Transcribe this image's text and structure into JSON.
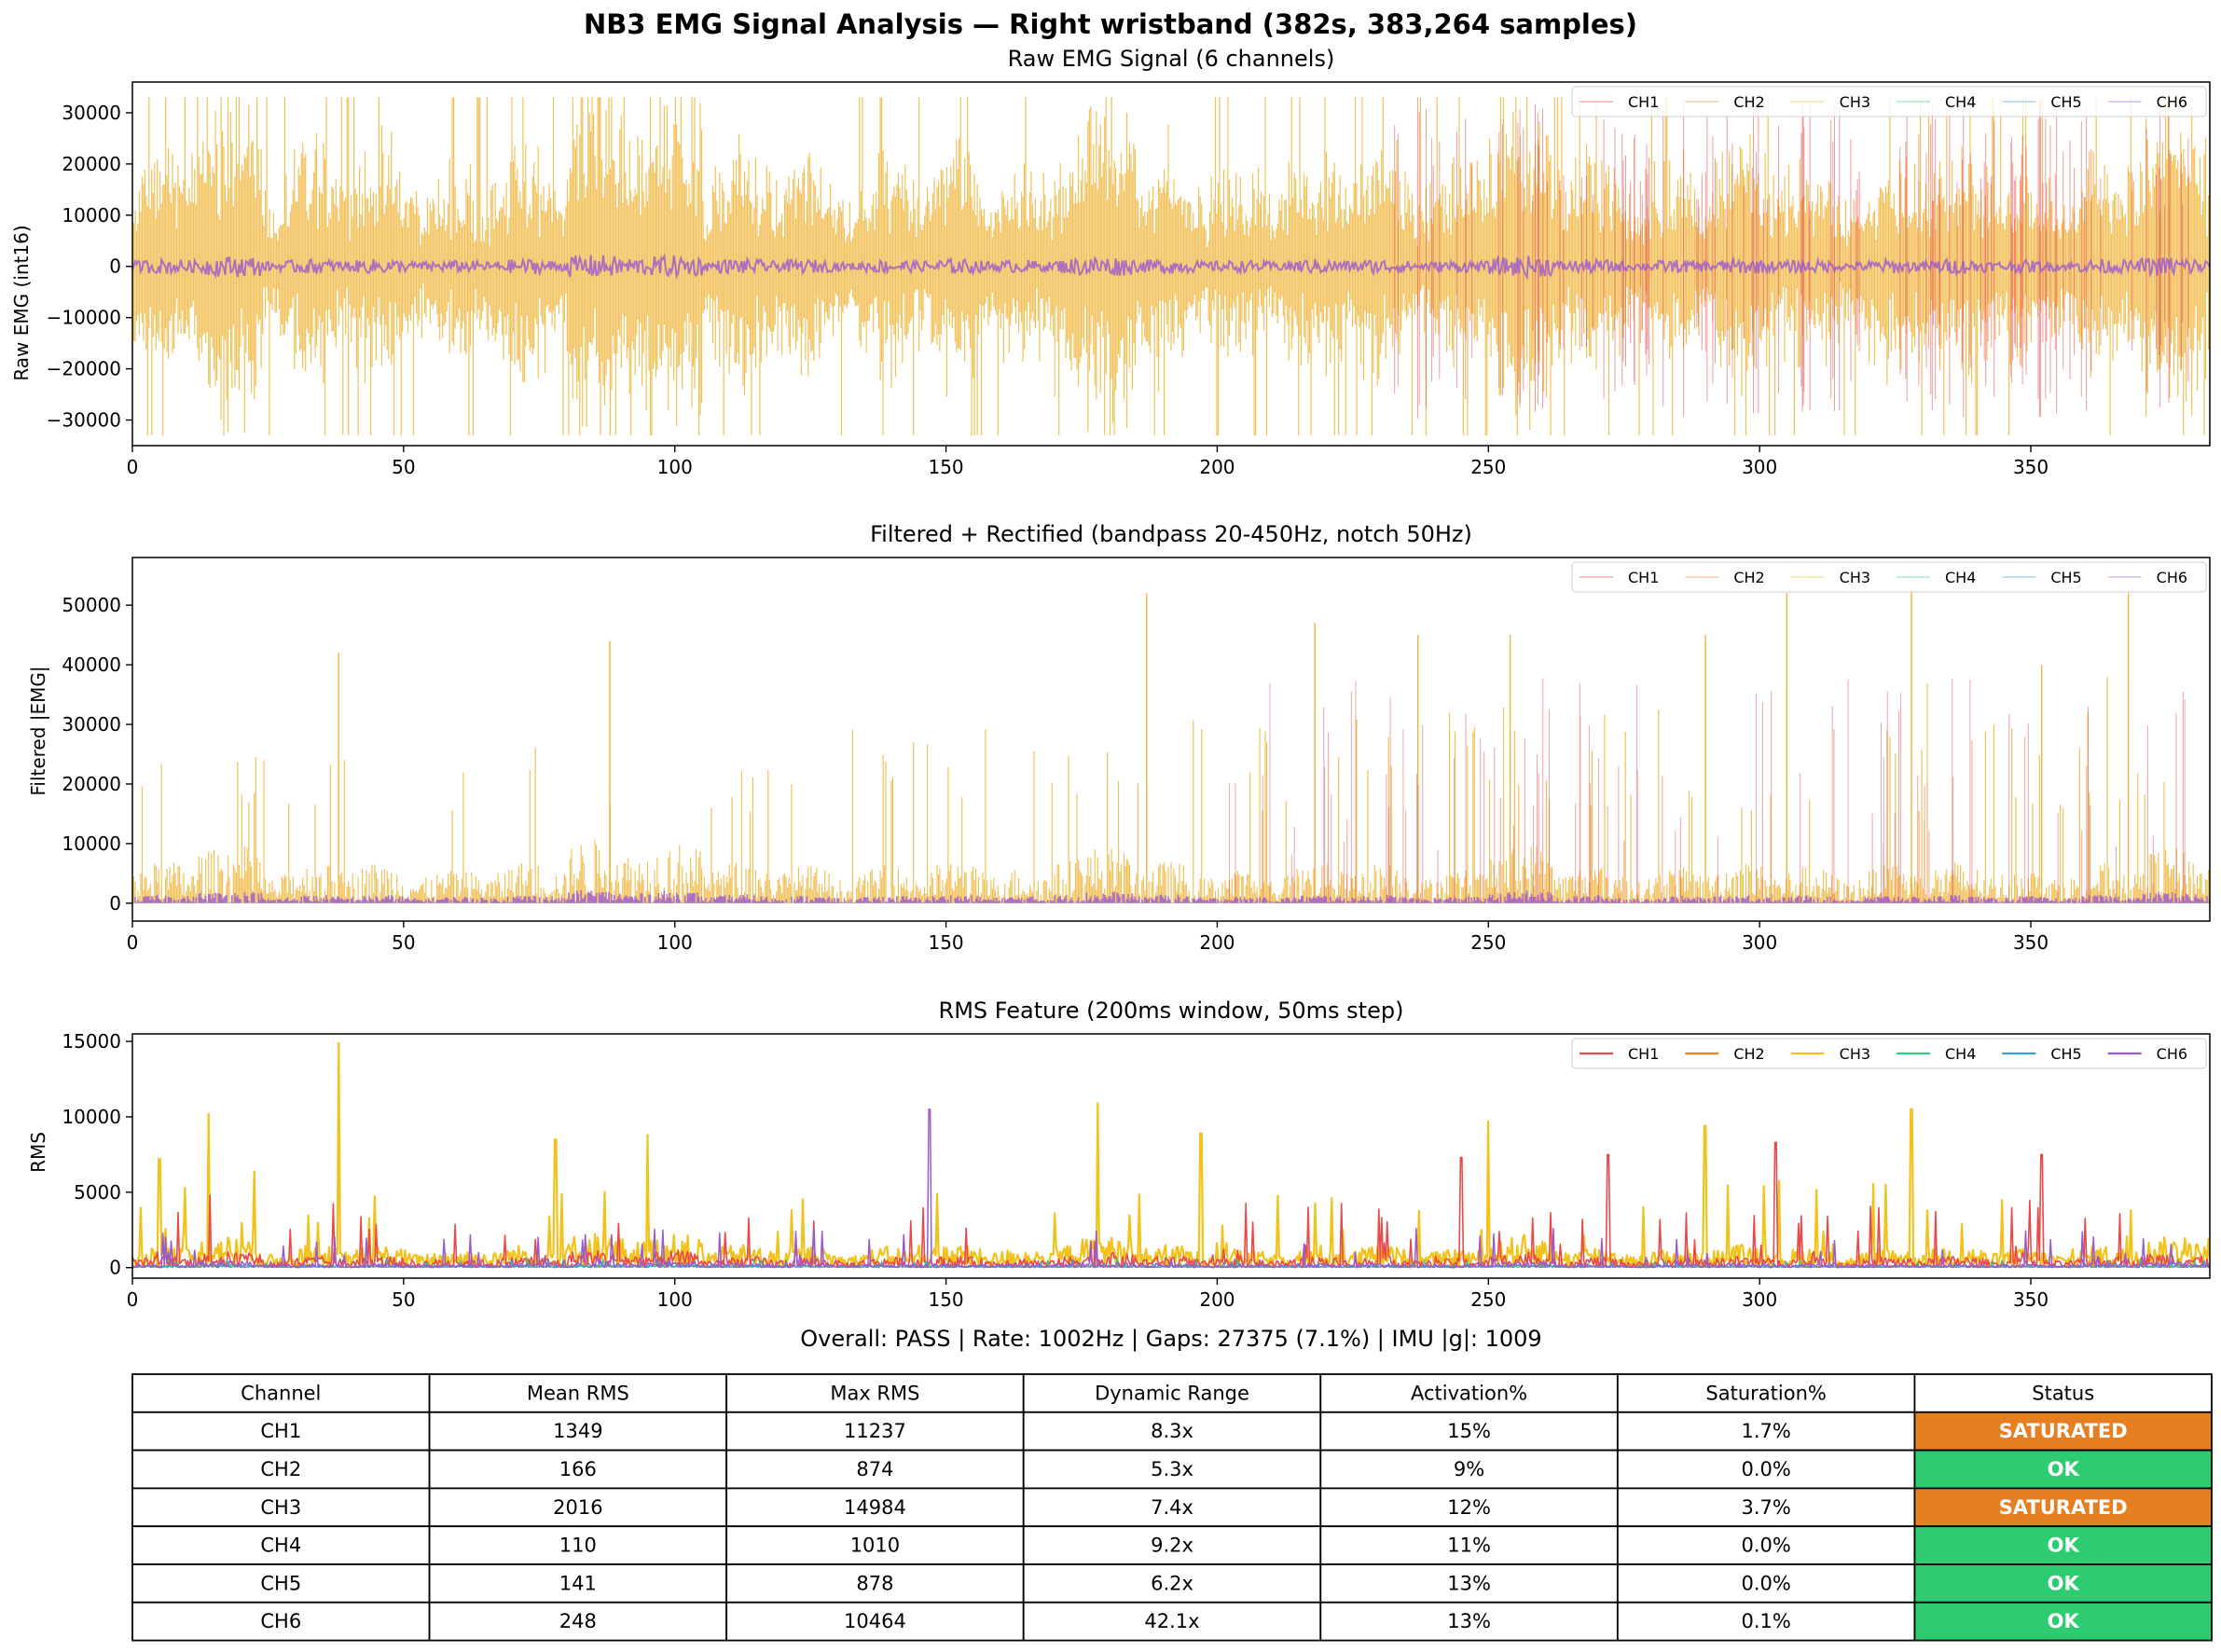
{
  "figure": {
    "title": "NB3 EMG Signal Analysis — Right wristband (382s, 383,264 samples)",
    "summary": "Overall: PASS | Rate: 1002Hz | Gaps: 27375 (7.1%) | IMU |g|: 1009"
  },
  "colors": {
    "CH1": "#e84a4a",
    "CH2": "#e8822a",
    "CH3": "#f2c21b",
    "CH4": "#2ecc87",
    "CH5": "#3a9fd8",
    "CH6": "#9b59d0",
    "raw_fill": "#f0b53c",
    "status_ok": "#2ecc71",
    "status_saturated": "#e67e22"
  },
  "chart_data": [
    {
      "type": "line",
      "title": "Raw EMG Signal (6 channels)",
      "xlabel": "",
      "ylabel": "Raw EMG (int16)",
      "xlim": [
        0,
        383
      ],
      "ylim": [
        -35000,
        36000
      ],
      "xticks": [
        0,
        50,
        100,
        150,
        200,
        250,
        300,
        350
      ],
      "yticks": [
        -30000,
        -20000,
        -10000,
        0,
        10000,
        20000,
        30000
      ],
      "legend": "top-right",
      "series": [
        {
          "name": "CH1"
        },
        {
          "name": "CH2"
        },
        {
          "name": "CH3"
        },
        {
          "name": "CH4"
        },
        {
          "name": "CH5"
        },
        {
          "name": "CH6"
        }
      ]
    },
    {
      "type": "line",
      "title": "Filtered + Rectified (bandpass 20-450Hz, notch 50Hz)",
      "xlabel": "",
      "ylabel": "Filtered |EMG|",
      "xlim": [
        0,
        383
      ],
      "ylim": [
        -3000,
        58000
      ],
      "xticks": [
        0,
        50,
        100,
        150,
        200,
        250,
        300,
        350
      ],
      "yticks": [
        0,
        10000,
        20000,
        30000,
        40000,
        50000
      ],
      "legend": "top-right",
      "series": [
        {
          "name": "CH1"
        },
        {
          "name": "CH2"
        },
        {
          "name": "CH3"
        },
        {
          "name": "CH4"
        },
        {
          "name": "CH5"
        },
        {
          "name": "CH6"
        }
      ]
    },
    {
      "type": "line",
      "title": "RMS Feature (200ms window, 50ms step)",
      "xlabel": "",
      "ylabel": "RMS",
      "xlim": [
        0,
        383
      ],
      "ylim": [
        -700,
        15500
      ],
      "xticks": [
        0,
        50,
        100,
        150,
        200,
        250,
        300,
        350
      ],
      "yticks": [
        0,
        5000,
        10000,
        15000
      ],
      "legend": "top-right",
      "series": [
        {
          "name": "CH1",
          "peaks": [
            {
              "x": 245,
              "y": 7300
            },
            {
              "x": 272,
              "y": 7500
            },
            {
              "x": 303,
              "y": 8300
            },
            {
              "x": 352,
              "y": 7500
            }
          ]
        },
        {
          "name": "CH2"
        },
        {
          "name": "CH3",
          "peaks": [
            {
              "x": 5,
              "y": 7200
            },
            {
              "x": 14,
              "y": 10200
            },
            {
              "x": 38,
              "y": 14900
            },
            {
              "x": 78,
              "y": 8500
            },
            {
              "x": 95,
              "y": 8800
            },
            {
              "x": 178,
              "y": 10900
            },
            {
              "x": 197,
              "y": 8900
            },
            {
              "x": 250,
              "y": 9700
            },
            {
              "x": 290,
              "y": 9400
            },
            {
              "x": 328,
              "y": 10500
            }
          ]
        },
        {
          "name": "CH4"
        },
        {
          "name": "CH5"
        },
        {
          "name": "CH6",
          "peaks": [
            {
              "x": 147,
              "y": 10500
            }
          ]
        }
      ]
    },
    {
      "type": "table",
      "columns": [
        "Channel",
        "Mean RMS",
        "Max RMS",
        "Dynamic Range",
        "Activation%",
        "Saturation%",
        "Status"
      ],
      "rows": [
        [
          "CH1",
          "1349",
          "11237",
          "8.3x",
          "15%",
          "1.7%",
          "SATURATED"
        ],
        [
          "CH2",
          "166",
          "874",
          "5.3x",
          "9%",
          "0.0%",
          "OK"
        ],
        [
          "CH3",
          "2016",
          "14984",
          "7.4x",
          "12%",
          "3.7%",
          "SATURATED"
        ],
        [
          "CH4",
          "110",
          "1010",
          "9.2x",
          "11%",
          "0.0%",
          "OK"
        ],
        [
          "CH5",
          "141",
          "878",
          "6.2x",
          "13%",
          "0.0%",
          "OK"
        ],
        [
          "CH6",
          "248",
          "10464",
          "42.1x",
          "13%",
          "0.1%",
          "OK"
        ]
      ]
    }
  ]
}
